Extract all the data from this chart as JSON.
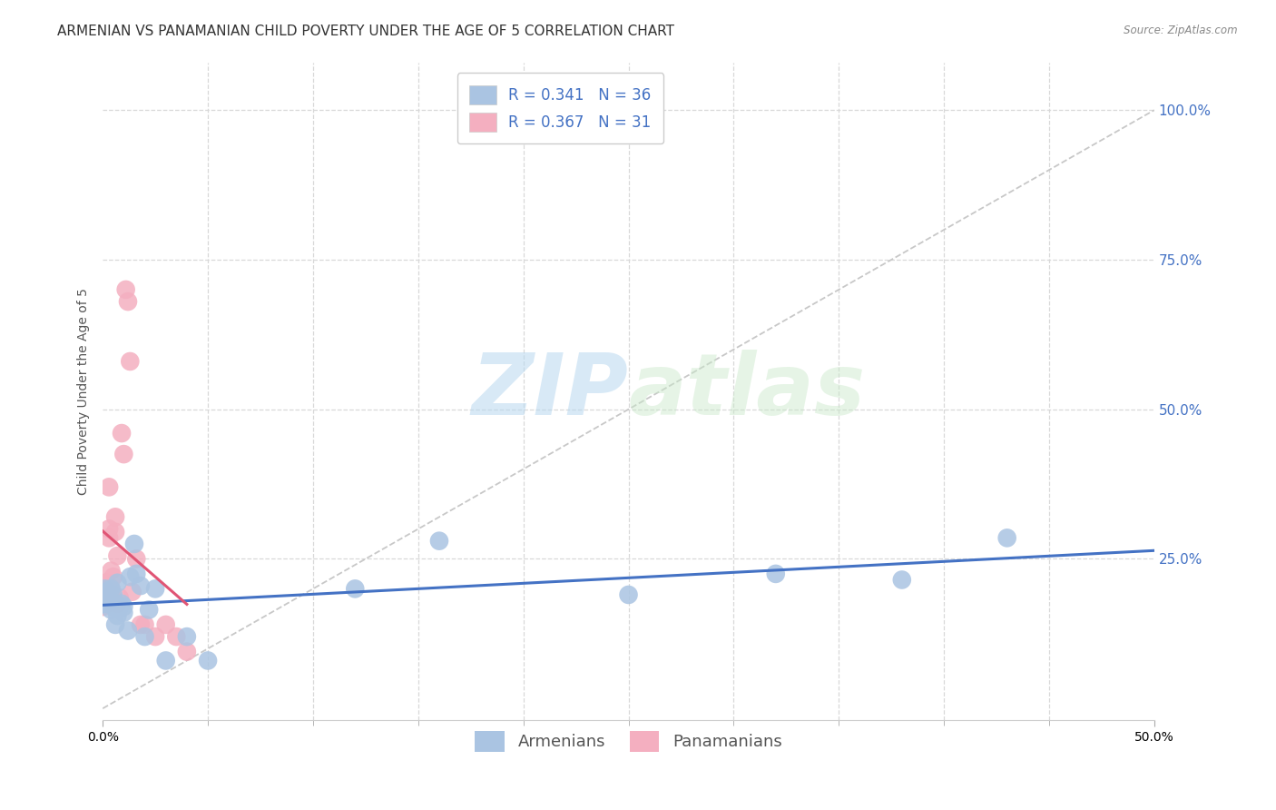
{
  "title": "ARMENIAN VS PANAMANIAN CHILD POVERTY UNDER THE AGE OF 5 CORRELATION CHART",
  "source": "Source: ZipAtlas.com",
  "ylabel": "Child Poverty Under the Age of 5",
  "ylabel_right_ticks": [
    "100.0%",
    "75.0%",
    "50.0%",
    "25.0%"
  ],
  "ylabel_right_vals": [
    1.0,
    0.75,
    0.5,
    0.25
  ],
  "xlim": [
    0.0,
    0.5
  ],
  "ylim": [
    -0.02,
    1.08
  ],
  "data_ylim": [
    0.0,
    1.0
  ],
  "armenian_R": "0.341",
  "armenian_N": "36",
  "panamanian_R": "0.367",
  "panamanian_N": "31",
  "armenian_color": "#aac4e2",
  "panamanian_color": "#f4afc0",
  "armenian_line_color": "#4472c4",
  "panamanian_line_color": "#e05575",
  "diagonal_color": "#c8c8c8",
  "background_color": "#ffffff",
  "watermark_zip": "ZIP",
  "watermark_atlas": "atlas",
  "grid_color": "#d8d8d8",
  "title_fontsize": 11,
  "axis_label_fontsize": 10,
  "tick_fontsize": 10,
  "legend_fontsize": 12,
  "armenian_x": [
    0.0,
    0.001,
    0.001,
    0.002,
    0.002,
    0.003,
    0.003,
    0.004,
    0.004,
    0.005,
    0.005,
    0.006,
    0.006,
    0.007,
    0.007,
    0.008,
    0.009,
    0.01,
    0.01,
    0.012,
    0.013,
    0.015,
    0.016,
    0.018,
    0.02,
    0.022,
    0.025,
    0.03,
    0.04,
    0.05,
    0.12,
    0.16,
    0.25,
    0.32,
    0.38,
    0.43
  ],
  "armenian_y": [
    0.175,
    0.185,
    0.2,
    0.175,
    0.195,
    0.175,
    0.185,
    0.165,
    0.2,
    0.17,
    0.19,
    0.14,
    0.175,
    0.155,
    0.21,
    0.17,
    0.175,
    0.16,
    0.17,
    0.13,
    0.22,
    0.275,
    0.225,
    0.205,
    0.12,
    0.165,
    0.2,
    0.08,
    0.12,
    0.08,
    0.2,
    0.28,
    0.19,
    0.225,
    0.215,
    0.285
  ],
  "panamanian_x": [
    0.0,
    0.0,
    0.001,
    0.001,
    0.002,
    0.002,
    0.003,
    0.003,
    0.003,
    0.004,
    0.004,
    0.005,
    0.005,
    0.006,
    0.006,
    0.007,
    0.007,
    0.008,
    0.009,
    0.01,
    0.011,
    0.012,
    0.013,
    0.014,
    0.016,
    0.018,
    0.02,
    0.025,
    0.03,
    0.035,
    0.04
  ],
  "panamanian_y": [
    0.17,
    0.195,
    0.21,
    0.185,
    0.175,
    0.21,
    0.3,
    0.37,
    0.285,
    0.2,
    0.23,
    0.185,
    0.22,
    0.295,
    0.32,
    0.175,
    0.255,
    0.185,
    0.46,
    0.425,
    0.7,
    0.68,
    0.58,
    0.195,
    0.25,
    0.14,
    0.14,
    0.12,
    0.14,
    0.12,
    0.095
  ]
}
